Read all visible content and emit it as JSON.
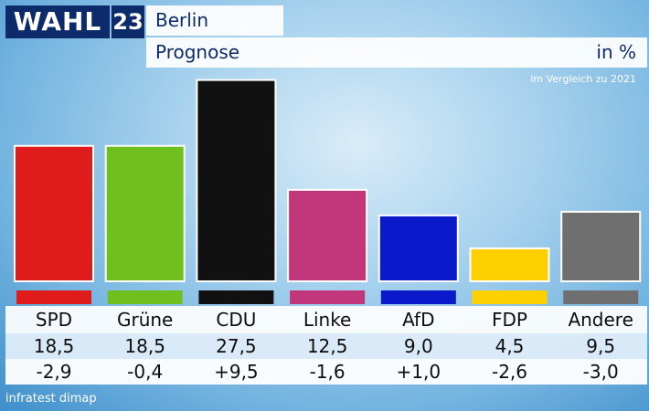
{
  "header": {
    "logo_text": "WAHL",
    "logo_number": "23",
    "title": "Berlin",
    "subtitle": "Prognose",
    "unit": "in %",
    "comparison_note": "im Vergleich zu 2021"
  },
  "source": "infratest dimap",
  "colors": {
    "SPD": "#e01b1b",
    "Grüne": "#6fbf1f",
    "CDU": "#111111",
    "Linke": "#c2367c",
    "AfD": "#0a19c9",
    "FDP": "#ffd000",
    "Andere": "#6f6f6f"
  },
  "chart_data": {
    "type": "bar",
    "title": "Berlin",
    "subtitle": "Prognose",
    "ylabel": "in %",
    "categories": [
      "SPD",
      "Grüne",
      "CDU",
      "Linke",
      "AfD",
      "FDP",
      "Andere"
    ],
    "values": [
      18.5,
      18.5,
      27.5,
      12.5,
      9.0,
      4.5,
      9.5
    ],
    "value_labels": [
      "18,5",
      "18,5",
      "27,5",
      "12,5",
      "9,0",
      "4,5",
      "9,5"
    ],
    "change_vs_2021": [
      -2.9,
      -0.4,
      9.5,
      -1.6,
      1.0,
      -2.6,
      -3.0
    ],
    "change_labels": [
      "-2,9",
      "-0,4",
      "+9,5",
      "-1,6",
      "+1,0",
      "-2,6",
      "-3,0"
    ],
    "ylim": [
      0,
      30
    ],
    "grid": false,
    "legend": "none"
  }
}
